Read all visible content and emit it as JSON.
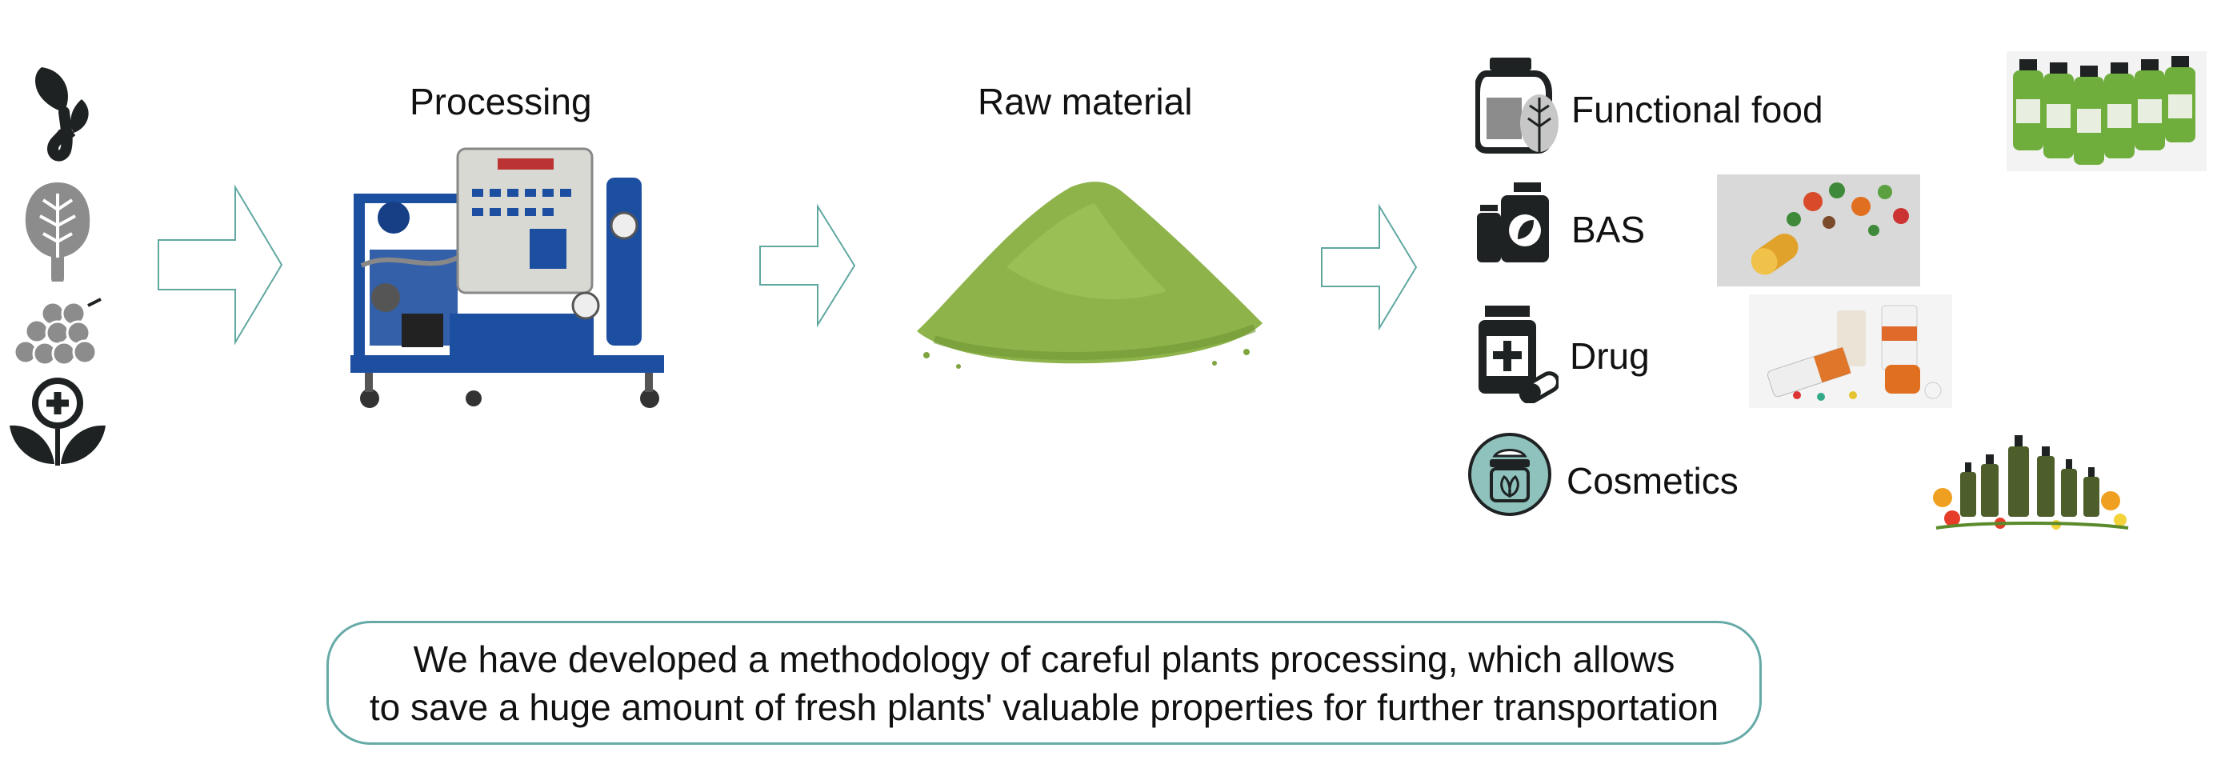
{
  "colors": {
    "arrow_stroke": "#5fa8a0",
    "caption_border": "#66aaa8",
    "icon_dark": "#1e2222",
    "teal_circle": "#8fc1bd",
    "powder_green": "#8db34a",
    "machine_blue": "#1d4fa0"
  },
  "left_icons": [
    "sprout-icon",
    "lettuce-leaf-icon",
    "berries-icon",
    "medicinal-plant-icon"
  ],
  "stages": {
    "processing_label": "Processing",
    "raw_material_label": "Raw material"
  },
  "products": [
    {
      "label": "Functional food",
      "icon": "jar-leaf-icon"
    },
    {
      "label": "BAS",
      "icon": "supplement-bottle-icon"
    },
    {
      "label": "Drug",
      "icon": "medicine-bottle-icon"
    },
    {
      "label": "Cosmetics",
      "icon": "cosmetics-jar-icon"
    }
  ],
  "caption": {
    "line1": "We have developed a methodology of careful plants processing, which allows",
    "line2": "to save a huge amount of fresh plants' valuable properties for further transportation"
  }
}
